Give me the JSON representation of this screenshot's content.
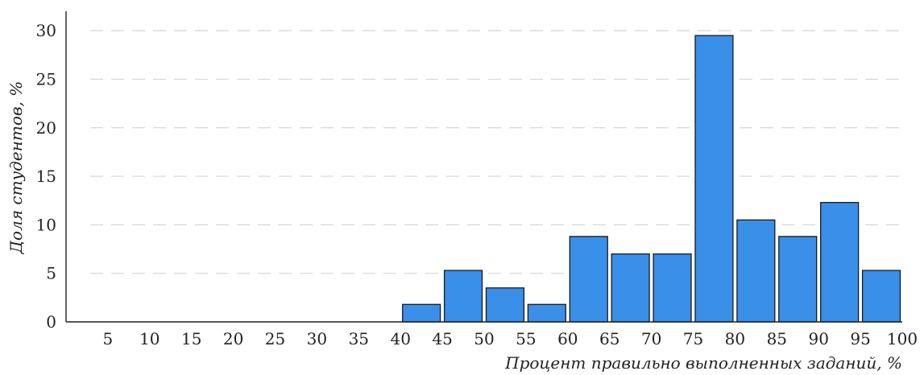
{
  "chart_data": {
    "type": "bar",
    "title": "",
    "xlabel": "Процент правильно выполненных заданий, %",
    "ylabel": "Доля студентов, %",
    "x_ticks": [
      "5",
      "10",
      "15",
      "20",
      "25",
      "30",
      "35",
      "40",
      "45",
      "50",
      "55",
      "60",
      "65",
      "70",
      "75",
      "80",
      "85",
      "90",
      "95",
      "100"
    ],
    "y_ticks": [
      "0",
      "5",
      "10",
      "15",
      "20",
      "25",
      "30"
    ],
    "ylim": [
      0,
      32
    ],
    "grid": "horizontal-dashed",
    "bars": [
      {
        "from": 40,
        "to": 45,
        "value": 1.8
      },
      {
        "from": 45,
        "to": 50,
        "value": 5.3
      },
      {
        "from": 50,
        "to": 55,
        "value": 3.5
      },
      {
        "from": 55,
        "to": 60,
        "value": 1.8
      },
      {
        "from": 60,
        "to": 65,
        "value": 8.8
      },
      {
        "from": 65,
        "to": 70,
        "value": 7.0
      },
      {
        "from": 70,
        "to": 75,
        "value": 7.0
      },
      {
        "from": 75,
        "to": 80,
        "value": 29.5
      },
      {
        "from": 80,
        "to": 85,
        "value": 10.5
      },
      {
        "from": 85,
        "to": 90,
        "value": 8.8
      },
      {
        "from": 90,
        "to": 95,
        "value": 12.3
      },
      {
        "from": 95,
        "to": 100,
        "value": 5.3
      }
    ],
    "bar_color": "#3a8fe8",
    "bar_edge_color": "#1a1a1a",
    "grid_color": "#d6d6d6",
    "axis_color": "#222222"
  }
}
